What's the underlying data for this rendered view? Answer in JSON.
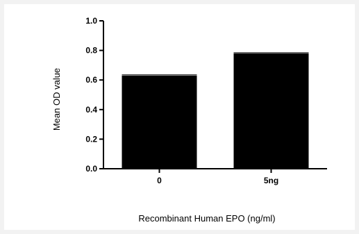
{
  "chart_data": {
    "type": "bar",
    "title": "",
    "xlabel": "Recombinant Human EPO (ng/ml)",
    "ylabel": "Mean OD value",
    "categories": [
      "0",
      "5ng"
    ],
    "values": [
      0.63,
      0.78
    ],
    "ylim": [
      0,
      1.0
    ],
    "yticks": [
      "0.0",
      "0.2",
      "0.4",
      "0.6",
      "0.8",
      "1.0"
    ],
    "grid": false,
    "bar_color": "#000000"
  }
}
